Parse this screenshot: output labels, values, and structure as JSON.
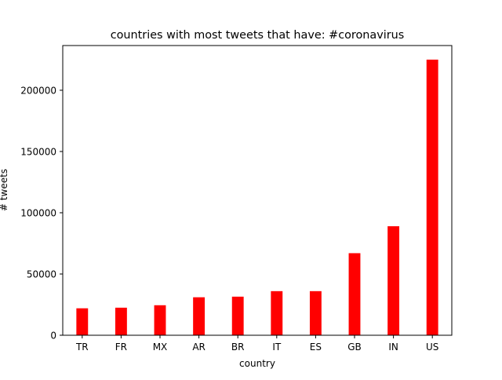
{
  "chart_data": {
    "type": "bar",
    "title": "countries with most tweets that have: #coronavirus",
    "xlabel": "country",
    "ylabel": "# tweets",
    "categories": [
      "TR",
      "FR",
      "MX",
      "AR",
      "BR",
      "IT",
      "ES",
      "GB",
      "IN",
      "US"
    ],
    "values": [
      22000,
      22500,
      24500,
      31000,
      31500,
      36000,
      36000,
      67000,
      89000,
      225000
    ],
    "ylim": [
      0,
      236500
    ],
    "yticks": [
      0,
      50000,
      100000,
      150000,
      200000
    ],
    "ytick_labels": [
      "0",
      "50000",
      "100000",
      "150000",
      "200000"
    ],
    "bar_color": "#ff0000",
    "grid": false,
    "legend": "none"
  }
}
